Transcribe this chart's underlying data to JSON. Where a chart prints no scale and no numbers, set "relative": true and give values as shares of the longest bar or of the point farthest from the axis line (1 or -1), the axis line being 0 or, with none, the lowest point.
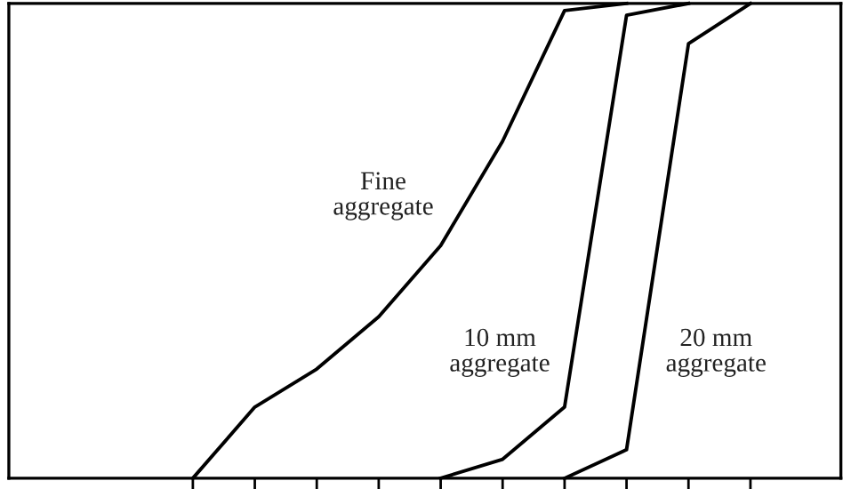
{
  "chart_data": {
    "type": "line",
    "relative": true,
    "grid": false,
    "legend": false,
    "marker": "none",
    "line_style": "solid",
    "categories": [
      null,
      null,
      null,
      null,
      null,
      null,
      null,
      null,
      null,
      null
    ],
    "series": [
      {
        "name": "Fine\naggregate",
        "color": "#000000",
        "values": [
          0,
          0.15,
          0.23,
          0.34,
          0.49,
          0.71,
          0.985,
          1.0,
          null,
          null
        ]
      },
      {
        "name": "10 mm\naggregate",
        "color": "#000000",
        "values": [
          null,
          null,
          null,
          null,
          0,
          0.04,
          0.15,
          0.975,
          1.0,
          null
        ]
      },
      {
        "name": "20 mm\naggregate",
        "color": "#000000",
        "values": [
          null,
          null,
          null,
          null,
          null,
          null,
          0,
          0.06,
          0.915,
          1.0
        ]
      }
    ]
  }
}
